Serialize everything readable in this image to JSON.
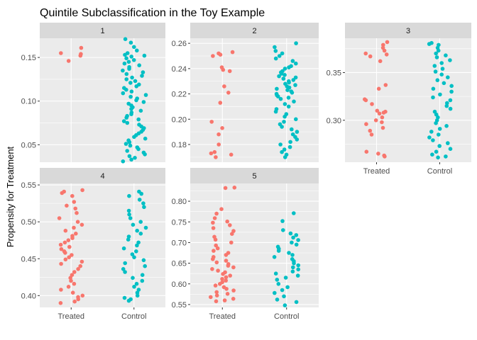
{
  "chart_data": {
    "type": "scatter",
    "title": "Quintile Subclassification in the Toy Example",
    "ylabel": "Propensity for Treatment",
    "xlabel": "",
    "categories": [
      "Treated",
      "Control"
    ],
    "colors": {
      "Treated": "#F8766D",
      "Control": "#00BFC4"
    },
    "grid": true,
    "legend": "none",
    "panels": [
      {
        "label": "1",
        "ylim": [
          0.03,
          0.172
        ],
        "yticks": [
          "0.05",
          "0.10",
          "0.15"
        ],
        "series": [
          {
            "name": "Treated",
            "values": [
              0.152,
              0.161,
              0.155,
              0.146,
              0.154
            ]
          },
          {
            "name": "Control",
            "values": [
              0.171,
              0.167,
              0.162,
              0.158,
              0.155,
              0.153,
              0.152,
              0.151,
              0.149,
              0.147,
              0.145,
              0.143,
              0.141,
              0.139,
              0.137,
              0.135,
              0.133,
              0.131,
              0.129,
              0.127,
              0.125,
              0.123,
              0.121,
              0.119,
              0.117,
              0.115,
              0.113,
              0.111,
              0.109,
              0.107,
              0.105,
              0.103,
              0.101,
              0.099,
              0.097,
              0.095,
              0.093,
              0.091,
              0.089,
              0.087,
              0.085,
              0.083,
              0.081,
              0.079,
              0.077,
              0.075,
              0.073,
              0.071,
              0.069,
              0.067,
              0.065,
              0.063,
              0.061,
              0.059,
              0.057,
              0.055,
              0.053,
              0.051,
              0.049,
              0.047,
              0.045,
              0.043,
              0.041,
              0.039,
              0.037,
              0.035,
              0.033,
              0.031
            ]
          }
        ]
      },
      {
        "label": "2",
        "ylim": [
          0.166,
          0.264
        ],
        "yticks": [
          "0.18",
          "0.20",
          "0.22",
          "0.24",
          "0.26"
        ],
        "series": [
          {
            "name": "Treated",
            "values": [
              0.253,
              0.252,
              0.251,
              0.25,
              0.241,
              0.239,
              0.238,
              0.226,
              0.221,
              0.213,
              0.198,
              0.193,
              0.188,
              0.18,
              0.174,
              0.173,
              0.172,
              0.17
            ]
          },
          {
            "name": "Control",
            "values": [
              0.26,
              0.257,
              0.254,
              0.252,
              0.25,
              0.248,
              0.246,
              0.244,
              0.242,
              0.241,
              0.24,
              0.238,
              0.237,
              0.236,
              0.235,
              0.234,
              0.233,
              0.232,
              0.231,
              0.23,
              0.229,
              0.228,
              0.227,
              0.226,
              0.225,
              0.224,
              0.223,
              0.222,
              0.221,
              0.22,
              0.219,
              0.218,
              0.217,
              0.216,
              0.214,
              0.212,
              0.21,
              0.208,
              0.206,
              0.204,
              0.202,
              0.2,
              0.198,
              0.196,
              0.194,
              0.192,
              0.19,
              0.188,
              0.186,
              0.184,
              0.182,
              0.18,
              0.178,
              0.176,
              0.174,
              0.172,
              0.17
            ]
          }
        ]
      },
      {
        "label": "3",
        "ylim": [
          0.256,
          0.386
        ],
        "yticks": [
          "0.30",
          "0.35"
        ],
        "series": [
          {
            "name": "Treated",
            "values": [
              0.382,
              0.379,
              0.376,
              0.373,
              0.37,
              0.369,
              0.367,
              0.362,
              0.337,
              0.333,
              0.322,
              0.321,
              0.317,
              0.31,
              0.309,
              0.308,
              0.307,
              0.303,
              0.3,
              0.298,
              0.296,
              0.292,
              0.289,
              0.285,
              0.267,
              0.265,
              0.263,
              0.262
            ]
          },
          {
            "name": "Control",
            "values": [
              0.381,
              0.38,
              0.379,
              0.376,
              0.373,
              0.37,
              0.368,
              0.366,
              0.363,
              0.36,
              0.357,
              0.354,
              0.351,
              0.348,
              0.345,
              0.342,
              0.339,
              0.336,
              0.333,
              0.33,
              0.327,
              0.324,
              0.321,
              0.318,
              0.315,
              0.312,
              0.309,
              0.306,
              0.303,
              0.3,
              0.297,
              0.294,
              0.291,
              0.288,
              0.285,
              0.282,
              0.279,
              0.276,
              0.273,
              0.27,
              0.267,
              0.264,
              0.262,
              0.261
            ]
          }
        ]
      },
      {
        "label": "4",
        "ylim": [
          0.384,
          0.552
        ],
        "yticks": [
          "0.40",
          "0.45",
          "0.50",
          "0.55"
        ],
        "series": [
          {
            "name": "Treated",
            "values": [
              0.543,
              0.541,
              0.539,
              0.535,
              0.527,
              0.522,
              0.518,
              0.512,
              0.505,
              0.5,
              0.496,
              0.492,
              0.488,
              0.484,
              0.481,
              0.478,
              0.475,
              0.472,
              0.469,
              0.466,
              0.463,
              0.46,
              0.458,
              0.455,
              0.452,
              0.449,
              0.446,
              0.443,
              0.44,
              0.436,
              0.432,
              0.428,
              0.424,
              0.42,
              0.416,
              0.412,
              0.408,
              0.404,
              0.4,
              0.398,
              0.395,
              0.392,
              0.39
            ]
          },
          {
            "name": "Control",
            "values": [
              0.541,
              0.538,
              0.535,
              0.53,
              0.525,
              0.52,
              0.515,
              0.51,
              0.505,
              0.5,
              0.496,
              0.492,
              0.488,
              0.484,
              0.48,
              0.476,
              0.472,
              0.468,
              0.464,
              0.46,
              0.456,
              0.452,
              0.448,
              0.444,
              0.44,
              0.436,
              0.432,
              0.428,
              0.424,
              0.42,
              0.416,
              0.412,
              0.408,
              0.404,
              0.4,
              0.397,
              0.395,
              0.393
            ]
          }
        ]
      },
      {
        "label": "5",
        "ylim": [
          0.543,
          0.843
        ],
        "yticks": [
          "0.55",
          "0.60",
          "0.65",
          "0.70",
          "0.75",
          "0.80"
        ],
        "series": [
          {
            "name": "Treated",
            "values": [
              0.833,
              0.832,
              0.781,
              0.77,
              0.759,
              0.751,
              0.748,
              0.742,
              0.735,
              0.728,
              0.721,
              0.714,
              0.707,
              0.7,
              0.693,
              0.686,
              0.68,
              0.675,
              0.67,
              0.665,
              0.66,
              0.656,
              0.652,
              0.648,
              0.644,
              0.64,
              0.636,
              0.632,
              0.628,
              0.624,
              0.62,
              0.616,
              0.612,
              0.608,
              0.604,
              0.6,
              0.596,
              0.592,
              0.588,
              0.584,
              0.58,
              0.576,
              0.572,
              0.568,
              0.564,
              0.56,
              0.558
            ]
          },
          {
            "name": "Control",
            "values": [
              0.771,
              0.752,
              0.73,
              0.722,
              0.718,
              0.712,
              0.706,
              0.7,
              0.695,
              0.69,
              0.685,
              0.68,
              0.675,
              0.67,
              0.665,
              0.66,
              0.655,
              0.65,
              0.645,
              0.64,
              0.635,
              0.63,
              0.625,
              0.62,
              0.615,
              0.61,
              0.6,
              0.592,
              0.585,
              0.578,
              0.57,
              0.562,
              0.556,
              0.548
            ]
          }
        ]
      }
    ]
  }
}
